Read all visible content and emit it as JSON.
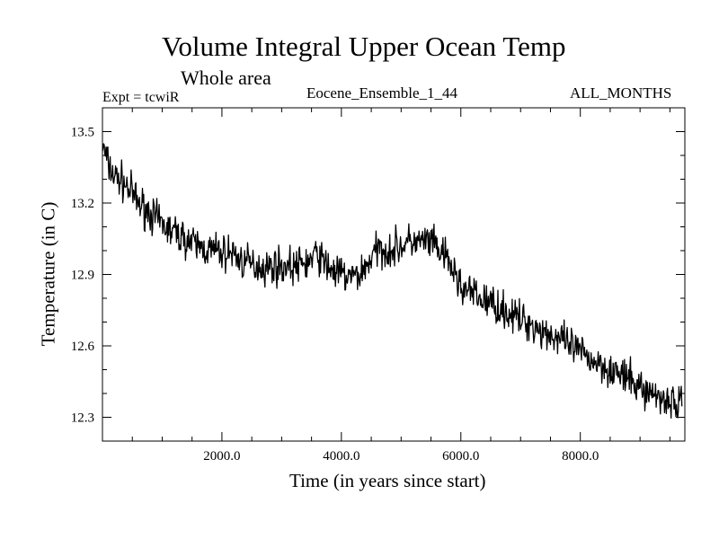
{
  "chart_data": {
    "type": "line",
    "title": "Volume Integral Upper Ocean Temp",
    "subtitle": "Whole area",
    "annotations": {
      "left": "Expt = tcwiR",
      "center": "Eocene_Ensemble_1_44",
      "right": "ALL_MONTHS"
    },
    "xlabel": "Time (in years since start)",
    "ylabel": "Temperature (in C)",
    "xlim": [
      0,
      9750
    ],
    "ylim": [
      12.2,
      13.6
    ],
    "xticks": [
      {
        "value": 2000,
        "label": "2000.0"
      },
      {
        "value": 4000,
        "label": "4000.0"
      },
      {
        "value": 6000,
        "label": "6000.0"
      },
      {
        "value": 8000,
        "label": "8000.0"
      }
    ],
    "yticks": [
      {
        "value": 12.3,
        "label": "12.3"
      },
      {
        "value": 12.6,
        "label": "12.6"
      },
      {
        "value": 12.9,
        "label": "12.9"
      },
      {
        "value": 13.2,
        "label": "13.2"
      },
      {
        "value": 13.5,
        "label": "13.5"
      }
    ],
    "grid": false,
    "line_color": "#000000",
    "series": [
      {
        "x": [
          0,
          100,
          200,
          300,
          400,
          500,
          600,
          700,
          800,
          900,
          1000,
          1100,
          1200,
          1300,
          1400,
          1500,
          1600,
          1700,
          1800,
          1900,
          2000,
          2100,
          2200,
          2300,
          2400,
          2500,
          2600,
          2700,
          2800,
          2900,
          3000,
          3100,
          3200,
          3300,
          3400,
          3500,
          3600,
          3700,
          3800,
          3900,
          4000,
          4100,
          4200,
          4300,
          4400,
          4500,
          4600,
          4700,
          4800,
          4900,
          5000,
          5100,
          5200,
          5300,
          5400,
          5500,
          5600,
          5700,
          5800,
          5900,
          6000,
          6100,
          6200,
          6300,
          6400,
          6500,
          6600,
          6700,
          6800,
          6900,
          7000,
          7100,
          7200,
          7300,
          7400,
          7500,
          7600,
          7700,
          7800,
          7900,
          8000,
          8100,
          8200,
          8300,
          8400,
          8500,
          8600,
          8700,
          8800,
          8900,
          9000,
          9100,
          9200,
          9300,
          9400,
          9500,
          9600,
          9700
        ],
        "values": [
          13.44,
          13.36,
          13.31,
          13.3,
          13.27,
          13.24,
          13.2,
          13.18,
          13.16,
          13.13,
          13.11,
          13.09,
          13.08,
          13.06,
          13.05,
          13.03,
          13.02,
          13.01,
          13.0,
          13.0,
          12.99,
          12.99,
          12.99,
          12.96,
          12.95,
          12.94,
          12.94,
          12.93,
          12.93,
          12.94,
          12.93,
          12.94,
          12.93,
          12.94,
          12.95,
          12.96,
          12.99,
          12.95,
          12.93,
          12.91,
          12.9,
          12.89,
          12.89,
          12.9,
          12.93,
          12.97,
          13.0,
          13.01,
          13.0,
          13.01,
          13.02,
          13.03,
          13.04,
          13.03,
          13.04,
          13.03,
          13.01,
          12.98,
          12.95,
          12.9,
          12.85,
          12.83,
          12.82,
          12.8,
          12.79,
          12.78,
          12.77,
          12.75,
          12.74,
          12.72,
          12.71,
          12.7,
          12.69,
          12.67,
          12.66,
          12.65,
          12.63,
          12.62,
          12.6,
          12.59,
          12.57,
          12.56,
          12.54,
          12.53,
          12.52,
          12.5,
          12.49,
          12.47,
          12.46,
          12.44,
          12.43,
          12.41,
          12.4,
          12.39,
          12.38,
          12.37,
          12.36,
          12.35
        ]
      }
    ]
  }
}
